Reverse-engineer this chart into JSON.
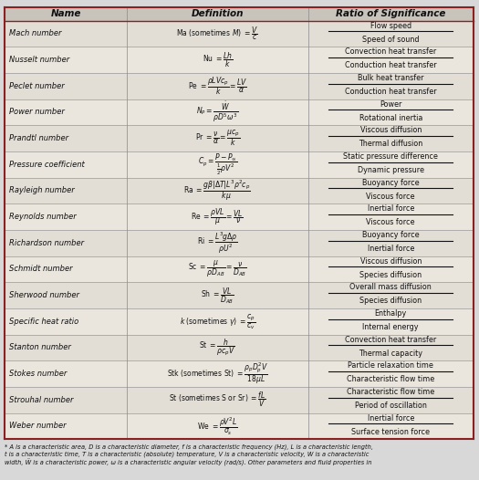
{
  "title_row": [
    "Name",
    "Definition",
    "Ratio of Significance"
  ],
  "bg_color": "#d8d8d8",
  "table_bg": "#e8e4dc",
  "header_bg": "#c8c4bc",
  "row_line_color": "#555555",
  "border_color": "#8b2020",
  "text_color": "#111111",
  "rows": [
    {
      "name": "Mach number",
      "ratio_top": "Flow speed",
      "ratio_bot": "Speed of sound"
    },
    {
      "name": "Nusselt number",
      "ratio_top": "Convection heat transfer",
      "ratio_bot": "Conduction heat transfer"
    },
    {
      "name": "Peclet number",
      "ratio_top": "Bulk heat transfer",
      "ratio_bot": "Conduction heat transfer"
    },
    {
      "name": "Power number",
      "ratio_top": "Power",
      "ratio_bot": "Rotational inertia"
    },
    {
      "name": "Prandtl number",
      "ratio_top": "Viscous diffusion",
      "ratio_bot": "Thermal diffusion"
    },
    {
      "name": "Pressure coefficient",
      "ratio_top": "Static pressure difference",
      "ratio_bot": "Dynamic pressure"
    },
    {
      "name": "Rayleigh number",
      "ratio_top": "Buoyancy force",
      "ratio_bot": "Viscous force"
    },
    {
      "name": "Reynolds number",
      "ratio_top": "Inertial force",
      "ratio_bot": "Viscous force"
    },
    {
      "name": "Richardson number",
      "ratio_top": "Buoyancy force",
      "ratio_bot": "Inertial force"
    },
    {
      "name": "Schmidt number",
      "ratio_top": "Viscous diffusion",
      "ratio_bot": "Species diffusion"
    },
    {
      "name": "Sherwood number",
      "ratio_top": "Overall mass diffusion",
      "ratio_bot": "Species diffusion"
    },
    {
      "name": "Specific heat ratio",
      "ratio_top": "Enthalpy",
      "ratio_bot": "Internal energy"
    },
    {
      "name": "Stanton number",
      "ratio_top": "Convection heat transfer",
      "ratio_bot": "Thermal capacity"
    },
    {
      "name": "Stokes number",
      "ratio_top": "Particle relaxation time",
      "ratio_bot": "Characteristic flow time"
    },
    {
      "name": "Strouhal number",
      "ratio_top": "Characteristic flow time",
      "ratio_bot": "Period of oscillation"
    },
    {
      "name": "Weber number",
      "ratio_top": "Inertial force",
      "ratio_bot": "Surface tension force"
    }
  ],
  "footnote": "* A is a characteristic area, D is a characteristic diameter, f is a characteristic frequency (Hz), L is a characteristic length,\nt is a characteristic time, T is a characteristic (absolute) temperature, V is a characteristic velocity, W is a characteristic\nwidth, Ẅ is a characteristic power, ω is a characteristic angular velocity (rad/s). Other parameters and fluid properties in",
  "definitions": [
    "Ma (sometimes $\\mathit{M}$) $=\\dfrac{V}{c}$",
    "Nu $=\\dfrac{\\mathit{Lh}}{k}$",
    "Pe $=\\dfrac{\\rho LVc_p}{k}=\\dfrac{LV}{\\alpha}$",
    "$N_P=\\dfrac{\\dot{W}}{\\rho D^5\\omega^3}$",
    "Pr $=\\dfrac{\\nu}{\\alpha}=\\dfrac{\\mu c_p}{k}$",
    "$C_p=\\dfrac{P-P_\\infty}{\\frac{1}{2}\\rho V^2}$",
    "Ra $=\\dfrac{g\\beta|\\Delta T|L^3\\rho^2 c_p}{k\\mu}$",
    "Re $=\\dfrac{\\rho VL}{\\mu}=\\dfrac{VL}{\\nu}$",
    "Ri $=\\dfrac{L^3g\\Delta\\rho}{\\rho U^2}$",
    "Sc $=\\dfrac{\\mu}{\\rho D_{AB}}=\\dfrac{\\nu}{D_{AB}}$",
    "Sh $=\\dfrac{VL}{D_{AB}}$",
    "$k$ (sometimes $\\gamma$) $=\\dfrac{c_p}{c_v}$",
    "St $=\\dfrac{h}{\\rho c_p V}$",
    "Stk (sometimes St) $=\\dfrac{\\rho_p D_p^2 V}{18\\mu L}$",
    "St (sometimes S or Sr) $=\\dfrac{fL}{V}$",
    "We $=\\dfrac{\\rho V^2 L}{\\sigma_s}$"
  ]
}
